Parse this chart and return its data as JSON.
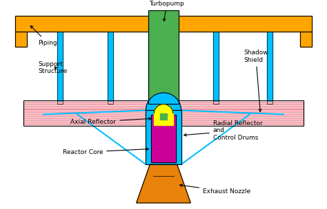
{
  "bg_color": "#ffffff",
  "orange": "#FFA500",
  "dark_orange": "#E8820A",
  "cyan": "#00BFFF",
  "green": "#4CAF50",
  "pink": "#FFB6C1",
  "magenta": "#CC0099",
  "yellow": "#FFFF00",
  "navy": "#000080",
  "gray": "#888888",
  "black": "#000000",
  "dark_pink": "#FF69B4",
  "piping_label": "Piping",
  "turbopump_label": "Turbopump",
  "support_label": "Support\nStructure",
  "shadow_label": "Shadow\nShield",
  "axial_label": "Axial Reflector",
  "radial_label": "Radial Reflector\nand\nControl Drums",
  "core_label": "Reactor Core",
  "nozzle_label": "Exhaust Nozzle"
}
